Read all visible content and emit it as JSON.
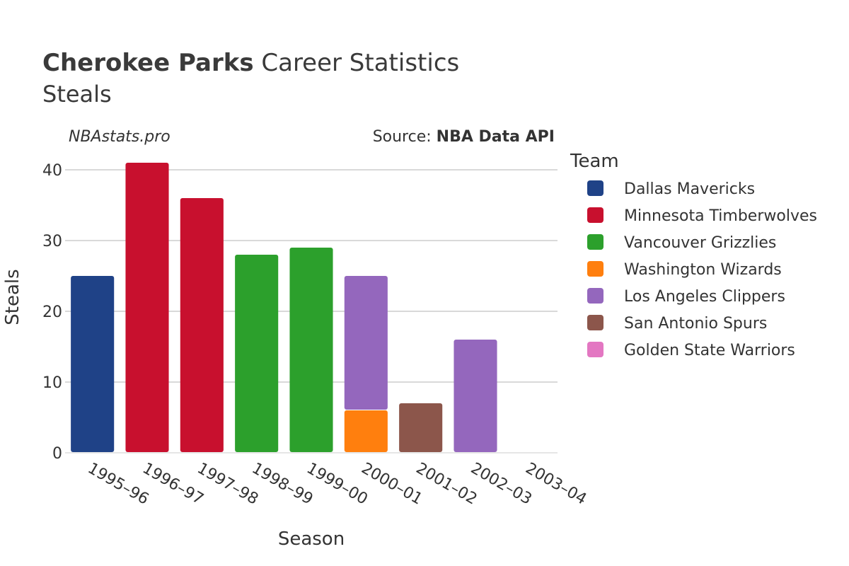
{
  "title": {
    "player": "Cherokee Parks",
    "rest": " Career Statistics",
    "stat": "Steals"
  },
  "watermark": "NBAstats.pro",
  "source": {
    "prefix": "Source: ",
    "name": "NBA Data API"
  },
  "legend": {
    "title": "Team",
    "items": [
      {
        "name": "Dallas Mavericks",
        "color": "#1f4287"
      },
      {
        "name": "Minnesota Timberwolves",
        "color": "#c8102e"
      },
      {
        "name": "Vancouver Grizzlies",
        "color": "#2ca02c"
      },
      {
        "name": "Washington Wizards",
        "color": "#ff7f0e"
      },
      {
        "name": "Los Angeles Clippers",
        "color": "#9467bd"
      },
      {
        "name": "San Antonio Spurs",
        "color": "#8c564b"
      },
      {
        "name": "Golden State Warriors",
        "color": "#e377c2"
      }
    ]
  },
  "chart_data": {
    "type": "bar",
    "stacked": true,
    "xlabel": "Season",
    "ylabel": "Steals",
    "ylim": [
      0,
      43
    ],
    "yticks": [
      0,
      10,
      20,
      30,
      40
    ],
    "grid": true,
    "legend_position": "right",
    "categories": [
      "1995–96",
      "1996–97",
      "1997–98",
      "1998–99",
      "1999–00",
      "2000–01",
      "2001–02",
      "2002–03",
      "2003–04"
    ],
    "series": [
      {
        "name": "Dallas Mavericks",
        "values": [
          25,
          0,
          0,
          0,
          0,
          0,
          0,
          0,
          0
        ]
      },
      {
        "name": "Minnesota Timberwolves",
        "values": [
          0,
          41,
          36,
          0,
          0,
          0,
          0,
          0,
          0
        ]
      },
      {
        "name": "Vancouver Grizzlies",
        "values": [
          0,
          0,
          0,
          28,
          29,
          0,
          0,
          0,
          0
        ]
      },
      {
        "name": "Washington Wizards",
        "values": [
          0,
          0,
          0,
          0,
          0,
          6,
          0,
          0,
          0
        ]
      },
      {
        "name": "Los Angeles Clippers",
        "values": [
          0,
          0,
          0,
          0,
          0,
          19,
          0,
          16,
          0
        ]
      },
      {
        "name": "San Antonio Spurs",
        "values": [
          0,
          0,
          0,
          0,
          0,
          0,
          7,
          0,
          0
        ]
      },
      {
        "name": "Golden State Warriors",
        "values": [
          0,
          0,
          0,
          0,
          0,
          0,
          0,
          0,
          0
        ]
      }
    ]
  }
}
